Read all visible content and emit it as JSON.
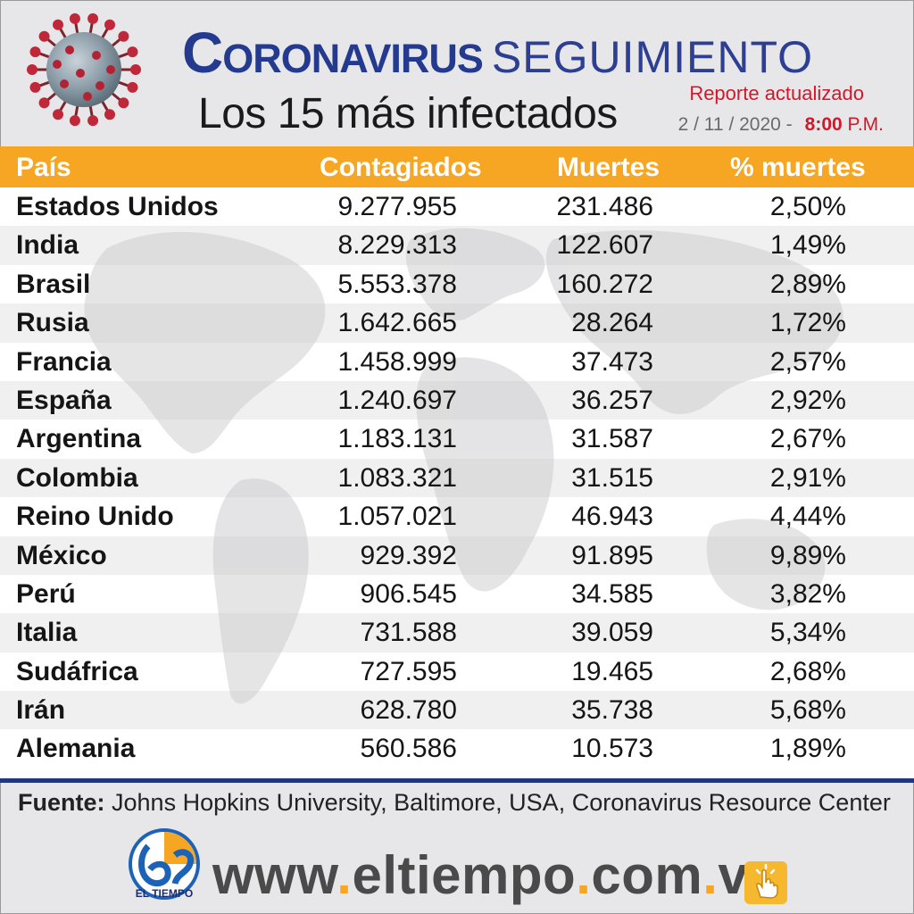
{
  "header": {
    "title_bold": "Coronavirus",
    "title_light": "SEGUIMIENTO",
    "subtitle": "Los 15 más infectados",
    "report_label": "Reporte actualizado",
    "date": "2 / 11 / 2020 -",
    "time": "8:00",
    "time_suffix": "P.M."
  },
  "chart_data": {
    "type": "table",
    "columns": [
      "País",
      "Contagiados",
      "Muertes",
      "% muertes"
    ],
    "rows": [
      [
        "Estados Unidos",
        "9.277.955",
        "231.486",
        "2,50%"
      ],
      [
        "India",
        "8.229.313",
        "122.607",
        "1,49%"
      ],
      [
        "Brasil",
        "5.553.378",
        "160.272",
        "2,89%"
      ],
      [
        "Rusia",
        "1.642.665",
        "28.264",
        "1,72%"
      ],
      [
        "Francia",
        "1.458.999",
        "37.473",
        "2,57%"
      ],
      [
        "España",
        "1.240.697",
        "36.257",
        "2,92%"
      ],
      [
        "Argentina",
        "1.183.131",
        "31.587",
        "2,67%"
      ],
      [
        "Colombia",
        "1.083.321",
        "31.515",
        "2,91%"
      ],
      [
        "Reino Unido",
        "1.057.021",
        "46.943",
        "4,44%"
      ],
      [
        "México",
        "929.392",
        "91.895",
        "9,89%"
      ],
      [
        "Perú",
        "906.545",
        "34.585",
        "3,82%"
      ],
      [
        "Italia",
        "731.588",
        "39.059",
        "5,34%"
      ],
      [
        "Sudáfrica",
        "727.595",
        "19.465",
        "2,68%"
      ],
      [
        "Irán",
        "628.780",
        "35.738",
        "5,68%"
      ],
      [
        "Alemania",
        "560.586",
        "10.573",
        "1,89%"
      ]
    ]
  },
  "source": {
    "label": "Fuente:",
    "text": "Johns Hopkins University, Baltimore, USA, Coronavirus Resource Center"
  },
  "footer": {
    "logo_text": "EL TIEMPO",
    "site_parts": [
      "www",
      ".",
      "eltiempo",
      ".",
      "com",
      ".",
      "ve"
    ]
  },
  "colors": {
    "header_bar": "#f6a623",
    "title_blue": "#233a8f",
    "report_red": "#d0182a",
    "divider_blue": "#24357f"
  },
  "icons": [
    "coronavirus-illustration",
    "world-map-watermark",
    "el-tiempo-logo",
    "hand-pointer-icon"
  ]
}
